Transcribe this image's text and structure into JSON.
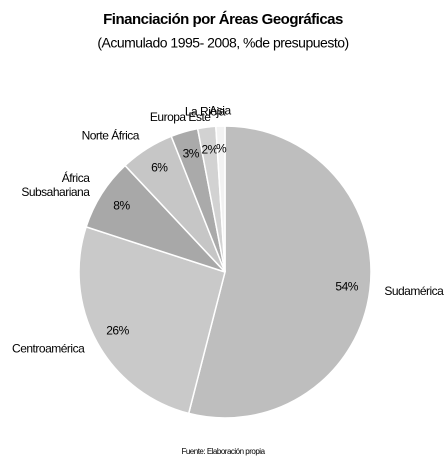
{
  "chart_data": {
    "type": "pie",
    "title": "Financiación por Áreas Geográficas",
    "subtitle": "(Acumulado 1995- 2008, %de presupuesto)",
    "source": "Fuente: Elaboración propia",
    "categories": [
      "Sudamérica",
      "Centroamérica",
      "África\nSubsahariana",
      "Norte África",
      "Europa Este",
      "La Rioja",
      "Asia"
    ],
    "values": [
      54,
      26,
      8,
      6,
      3,
      2,
      1
    ],
    "value_labels": [
      "54%",
      "26%",
      "8%",
      "6%",
      "3%",
      "2%",
      "%"
    ],
    "colors": [
      "#bebebe",
      "#c9c9c9",
      "#a8a8a8",
      "#c6c6c6",
      "#aaaaaa",
      "#d2d2d2",
      "#f2f2f2"
    ]
  }
}
